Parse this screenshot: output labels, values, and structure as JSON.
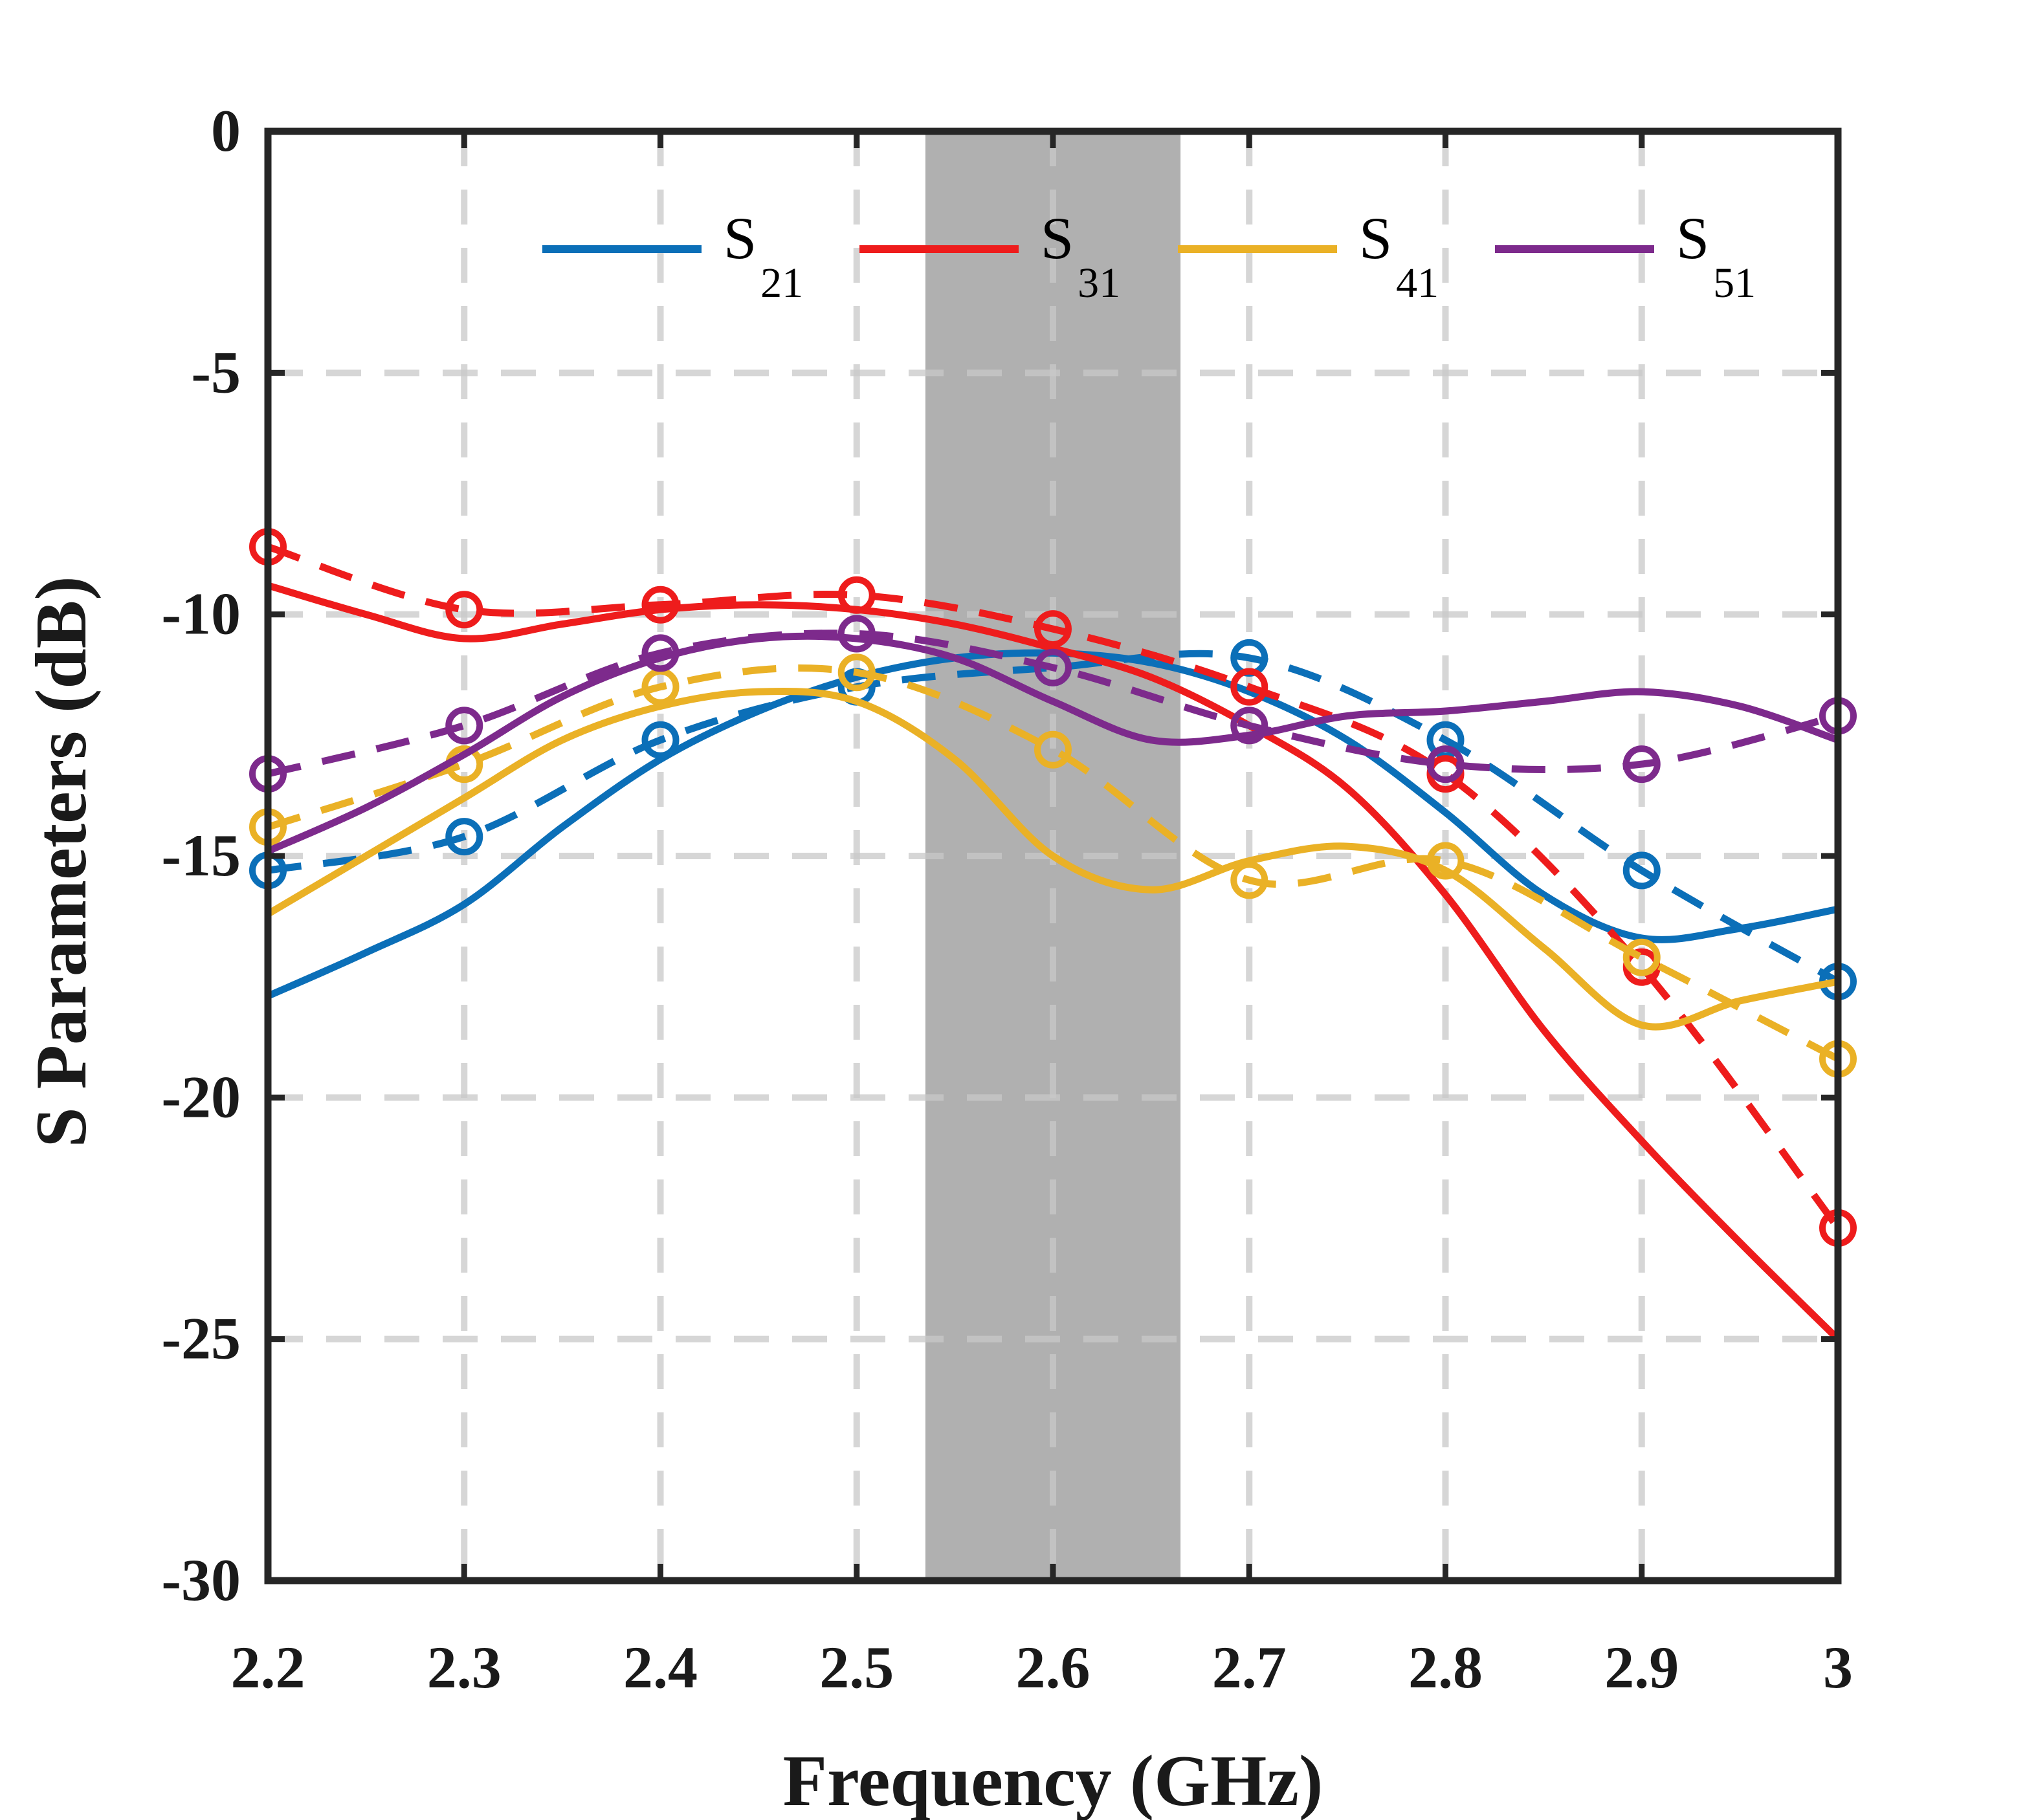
{
  "chart_data": {
    "type": "line",
    "xlabel": "Frequency (GHz)",
    "ylabel": "S Parameters (dB)",
    "xlim": [
      2.2,
      3.0
    ],
    "ylim": [
      -30,
      0
    ],
    "x_ticks": [
      2.2,
      2.3,
      2.4,
      2.5,
      2.6,
      2.7,
      2.8,
      2.9,
      3.0
    ],
    "x_tick_labels": [
      "2.2",
      "2.3",
      "2.4",
      "2.5",
      "2.6",
      "2.7",
      "2.8",
      "2.9",
      "3"
    ],
    "y_ticks": [
      0,
      -5,
      -10,
      -15,
      -20,
      -25,
      -30
    ],
    "y_tick_labels": [
      "0",
      "-5",
      "-10",
      "-15",
      "-20",
      "-25",
      "-30"
    ],
    "grid": true,
    "legend_position": "top",
    "shaded_band": {
      "x_start": 2.535,
      "x_end": 2.665,
      "color": "#9a9a9a"
    },
    "series": [
      {
        "name": "S21",
        "legend_base": "S",
        "legend_sub": "21",
        "color": "#0b6fb8",
        "simulated": {
          "x": [
            2.2,
            2.25,
            2.3,
            2.35,
            2.4,
            2.45,
            2.5,
            2.55,
            2.6,
            2.65,
            2.7,
            2.75,
            2.8,
            2.85,
            2.9,
            2.95,
            3.0
          ],
          "y": [
            -17.9,
            -17.0,
            -16.0,
            -14.4,
            -13.0,
            -12.0,
            -11.3,
            -10.9,
            -10.8,
            -11.0,
            -11.6,
            -12.6,
            -14.1,
            -15.8,
            -16.7,
            -16.5,
            -16.1
          ]
        },
        "measured": {
          "x": [
            2.2,
            2.3,
            2.4,
            2.5,
            2.6,
            2.7,
            2.8,
            2.9,
            3.0
          ],
          "y": [
            -15.3,
            -14.6,
            -12.6,
            -11.5,
            -11.1,
            -10.9,
            -12.6,
            -15.3,
            -17.6
          ]
        }
      },
      {
        "name": "S31",
        "legend_base": "S",
        "legend_sub": "31",
        "color": "#ee1c1c",
        "simulated": {
          "x": [
            2.2,
            2.25,
            2.3,
            2.35,
            2.4,
            2.45,
            2.5,
            2.55,
            2.6,
            2.65,
            2.7,
            2.75,
            2.8,
            2.85,
            2.9,
            2.95,
            3.0
          ],
          "y": [
            -9.4,
            -10.0,
            -10.5,
            -10.2,
            -9.9,
            -9.8,
            -9.9,
            -10.2,
            -10.7,
            -11.3,
            -12.3,
            -13.6,
            -15.8,
            -18.6,
            -20.9,
            -23.0,
            -25.0
          ]
        },
        "measured": {
          "x": [
            2.2,
            2.3,
            2.4,
            2.5,
            2.6,
            2.7,
            2.8,
            2.9,
            3.0
          ],
          "y": [
            -8.6,
            -9.9,
            -9.8,
            -9.6,
            -10.3,
            -11.5,
            -13.3,
            -17.3,
            -22.7
          ]
        }
      },
      {
        "name": "S41",
        "legend_base": "S",
        "legend_sub": "41",
        "color": "#eab126",
        "simulated": {
          "x": [
            2.2,
            2.25,
            2.3,
            2.35,
            2.4,
            2.45,
            2.5,
            2.55,
            2.6,
            2.65,
            2.7,
            2.75,
            2.8,
            2.85,
            2.9,
            2.95,
            3.0
          ],
          "y": [
            -16.2,
            -15.0,
            -13.8,
            -12.6,
            -11.9,
            -11.6,
            -11.8,
            -13.0,
            -15.0,
            -15.7,
            -15.1,
            -14.8,
            -15.3,
            -16.9,
            -18.5,
            -18.0,
            -17.6
          ]
        },
        "measured": {
          "x": [
            2.2,
            2.3,
            2.4,
            2.5,
            2.6,
            2.7,
            2.8,
            2.9,
            3.0
          ],
          "y": [
            -14.4,
            -13.1,
            -11.5,
            -11.2,
            -12.8,
            -15.5,
            -15.1,
            -17.1,
            -19.2
          ]
        }
      },
      {
        "name": "S51",
        "legend_base": "S",
        "legend_sub": "51",
        "color": "#7d2a8c",
        "simulated": {
          "x": [
            2.2,
            2.25,
            2.3,
            2.35,
            2.4,
            2.45,
            2.5,
            2.55,
            2.6,
            2.65,
            2.7,
            2.75,
            2.8,
            2.85,
            2.9,
            2.95,
            3.0
          ],
          "y": [
            -14.9,
            -14.0,
            -12.9,
            -11.7,
            -10.9,
            -10.5,
            -10.5,
            -10.9,
            -11.8,
            -12.6,
            -12.5,
            -12.1,
            -12.0,
            -11.8,
            -11.6,
            -11.9,
            -12.6
          ]
        },
        "measured": {
          "x": [
            2.2,
            2.3,
            2.4,
            2.5,
            2.6,
            2.7,
            2.8,
            2.9,
            3.0
          ],
          "y": [
            -13.3,
            -12.3,
            -10.8,
            -10.4,
            -11.1,
            -12.3,
            -13.1,
            -13.1,
            -12.1
          ]
        }
      }
    ]
  }
}
